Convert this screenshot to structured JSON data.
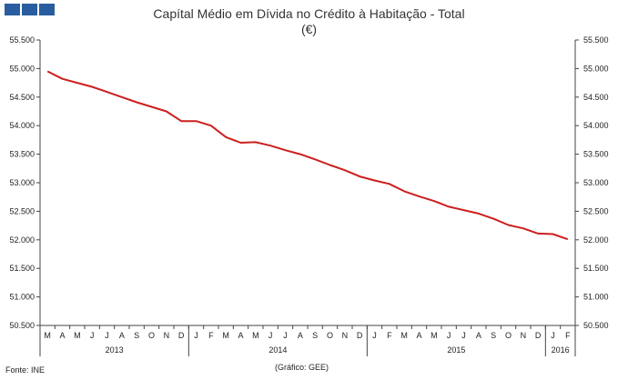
{
  "header": {
    "logo_icon": "ine-logo-icon",
    "title": "Capítal Médio em Dívida no Crédito à Habitação - Total",
    "unit": "(€)"
  },
  "footer": {
    "source": "Fonte: INE",
    "credit": "(Gráfico:  GEE)"
  },
  "chart_data": {
    "type": "line",
    "title": "Capítal Médio em Dívida no Crédito à Habitação - Total",
    "subtitle": "(€)",
    "ylim": [
      50500,
      55500
    ],
    "yticks": [
      50500,
      51000,
      51500,
      52000,
      52500,
      53000,
      53500,
      54000,
      54500,
      55000,
      55500
    ],
    "ytick_labels": [
      "50.500",
      "51.000",
      "51.500",
      "52.000",
      "52.500",
      "53.000",
      "53.500",
      "54.000",
      "54.500",
      "55.000",
      "55.500"
    ],
    "grid": false,
    "months": [
      "M",
      "A",
      "M",
      "J",
      "J",
      "A",
      "S",
      "O",
      "N",
      "D",
      "J",
      "F",
      "M",
      "A",
      "M",
      "J",
      "J",
      "A",
      "S",
      "O",
      "N",
      "D",
      "J",
      "F",
      "M",
      "A",
      "M",
      "J",
      "J",
      "A",
      "S",
      "O",
      "N",
      "D",
      "J",
      "F"
    ],
    "years": [
      {
        "label": "2013",
        "start": 0,
        "end": 9
      },
      {
        "label": "2014",
        "start": 10,
        "end": 21
      },
      {
        "label": "2015",
        "start": 22,
        "end": 33
      },
      {
        "label": "2016",
        "start": 34,
        "end": 35
      }
    ],
    "series": [
      {
        "color": "#cc1f1f",
        "values": [
          54950,
          54820,
          54750,
          54680,
          54590,
          54500,
          54410,
          54330,
          54250,
          54080,
          54080,
          54000,
          53800,
          53700,
          53710,
          53650,
          53570,
          53500,
          53410,
          53310,
          53220,
          53110,
          53040,
          52980,
          52850,
          52760,
          52680,
          52580,
          52520,
          52460,
          52370,
          52260,
          52200,
          52110,
          52100,
          52010
        ]
      }
    ]
  }
}
